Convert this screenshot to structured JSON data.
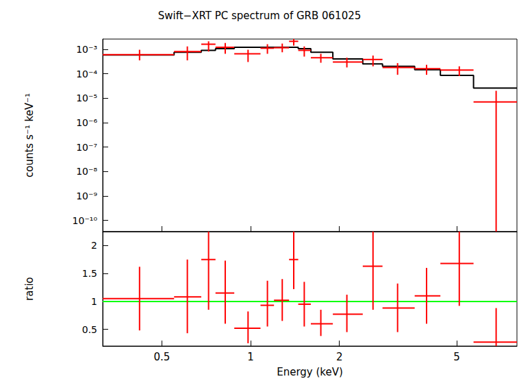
{
  "chart_data": [
    {
      "type": "spectrum",
      "title": "Swift−XRT PC spectrum of GRB 061025",
      "ylabel": "counts s⁻¹ keV⁻¹",
      "log": true,
      "grid": false,
      "tick_labels": "y",
      "xlim": [
        0.315,
        8.0
      ],
      "xticks": [
        0.5,
        1,
        2,
        5
      ],
      "ylim": [
        3.5e-11,
        0.0026
      ],
      "yticks": [
        {
          "value": 1e-10,
          "label": "10⁻¹⁰"
        },
        {
          "value": 1e-09,
          "label": "10⁻⁹"
        },
        {
          "value": 1e-08,
          "label": "10⁻⁸"
        },
        {
          "value": 1e-07,
          "label": "10⁻⁷"
        },
        {
          "value": 1e-06,
          "label": "10⁻⁶"
        },
        {
          "value": 1e-05,
          "label": "10⁻⁵"
        },
        {
          "value": 0.0001,
          "label": "10⁻⁴"
        },
        {
          "value": 0.001,
          "label": "10⁻³"
        }
      ],
      "series": [
        {
          "type": "errorbar",
          "color": "#ff0000",
          "x": [
            0.42,
            0.61,
            0.72,
            0.82,
            0.98,
            1.14,
            1.28,
            1.4,
            1.52,
            1.73,
            2.12,
            2.6,
            3.15,
            3.95,
            5.1,
            6.8
          ],
          "x_low": [
            0.315,
            0.55,
            0.68,
            0.76,
            0.88,
            1.08,
            1.2,
            1.35,
            1.45,
            1.6,
            1.9,
            2.4,
            2.8,
            3.6,
            4.4,
            5.7
          ],
          "x_high": [
            0.55,
            0.68,
            0.76,
            0.88,
            1.08,
            1.2,
            1.35,
            1.45,
            1.6,
            1.9,
            2.4,
            2.8,
            3.6,
            4.4,
            5.7,
            8.0
          ],
          "values": [
            0.0006,
            0.0008,
            0.0016,
            0.0012,
            0.00065,
            0.0011,
            0.00115,
            0.0021,
            0.0009,
            0.00045,
            0.0003,
            0.00038,
            0.00018,
            0.00016,
            0.00014,
            7e-06
          ],
          "y_low": [
            0.00035,
            0.00035,
            0.0008,
            0.00065,
            0.0003,
            0.00065,
            0.00075,
            0.0014,
            0.0005,
            0.00028,
            0.00018,
            0.0002,
            9e-05,
            9e-05,
            8e-05,
            1e-12
          ],
          "y_high": [
            0.00095,
            0.0013,
            0.0021,
            0.0018,
            0.00095,
            0.0016,
            0.0017,
            0.0027,
            0.0013,
            0.00065,
            0.00045,
            0.00055,
            0.00027,
            0.00023,
            0.0002,
            2e-05
          ]
        },
        {
          "type": "step",
          "color": "#000000",
          "bins": [
            0.315,
            0.55,
            0.68,
            0.76,
            0.88,
            1.45,
            1.6,
            1.9,
            2.4,
            2.8,
            3.6,
            4.4,
            5.7,
            8.0
          ],
          "values": [
            0.00058,
            0.00075,
            0.0009,
            0.00105,
            0.0012,
            0.00105,
            0.00075,
            0.0004,
            0.00025,
            0.0002,
            0.000145,
            8.5e-05,
            2.6e-05
          ]
        }
      ]
    },
    {
      "type": "ratio",
      "xlabel": "Energy (keV)",
      "ylabel": "ratio",
      "log": "x",
      "grid": false,
      "xlim": [
        0.315,
        8.0
      ],
      "xticks": [
        0.5,
        1,
        2,
        5
      ],
      "ylim": [
        0.2,
        2.25
      ],
      "yticks": [
        0.5,
        1,
        1.5,
        2
      ],
      "reference": {
        "y": 1,
        "color": "#00ff00"
      },
      "series": [
        {
          "type": "errorbar",
          "color": "#ff0000",
          "x": [
            0.42,
            0.61,
            0.72,
            0.82,
            0.98,
            1.14,
            1.28,
            1.4,
            1.52,
            1.73,
            2.12,
            2.6,
            3.15,
            3.95,
            5.1,
            6.8
          ],
          "x_low": [
            0.315,
            0.55,
            0.68,
            0.76,
            0.88,
            1.08,
            1.2,
            1.35,
            1.45,
            1.6,
            1.9,
            2.4,
            2.8,
            3.6,
            4.4,
            5.7
          ],
          "x_high": [
            0.55,
            0.68,
            0.76,
            0.88,
            1.08,
            1.2,
            1.35,
            1.45,
            1.6,
            1.9,
            2.4,
            2.8,
            3.6,
            4.4,
            5.7,
            8.0
          ],
          "values": [
            1.05,
            1.08,
            1.75,
            1.15,
            0.52,
            0.93,
            1.02,
            1.75,
            0.95,
            0.6,
            0.77,
            1.63,
            0.88,
            1.1,
            1.68,
            0.27
          ],
          "y_low": [
            0.48,
            0.43,
            0.85,
            0.6,
            0.25,
            0.55,
            0.65,
            1.22,
            0.55,
            0.38,
            0.45,
            0.85,
            0.45,
            0.6,
            0.92,
            0
          ],
          "y_high": [
            1.62,
            1.75,
            2.3,
            1.73,
            0.82,
            1.37,
            1.4,
            2.25,
            1.35,
            0.85,
            1.12,
            2.3,
            1.32,
            1.6,
            2.3,
            0.88
          ]
        }
      ]
    }
  ]
}
